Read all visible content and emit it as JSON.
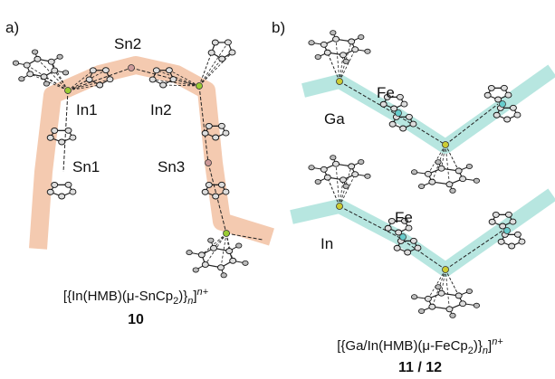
{
  "panel_a": {
    "label": "a)",
    "atoms": [
      "Sn2",
      "In1",
      "In2",
      "Sn1",
      "Sn3"
    ],
    "caption": [
      "[{In(HMB)(μ-SnCp",
      "2",
      ")}",
      "n",
      "]",
      "n+"
    ],
    "compound": "10"
  },
  "panel_b": {
    "label": "b)",
    "atoms": [
      "Fe",
      "Ga",
      "Fe",
      "In"
    ],
    "caption": [
      "[{Ga/In(HMB)(μ-FeCp",
      "2",
      ")}",
      "n",
      "]",
      "n+"
    ],
    "compound": "11 / 12"
  }
}
